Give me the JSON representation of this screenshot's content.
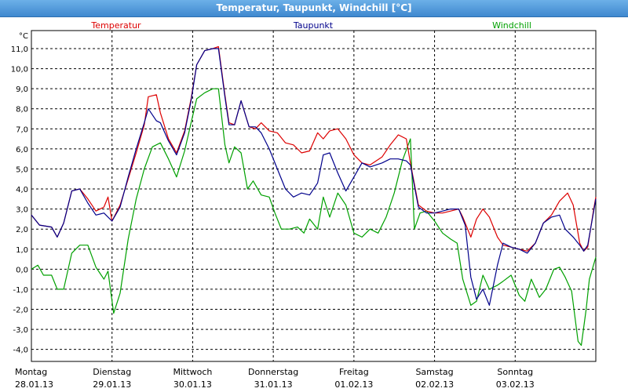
{
  "window": {
    "title": "Temperatur, Taupunkt, Windchill [°C]"
  },
  "chart_data": {
    "type": "line",
    "title": "Temperatur, Taupunkt, Windchill [°C]",
    "ylabel": "°C",
    "ylim": [
      -4.6,
      11.9
    ],
    "xlim": [
      0,
      7
    ],
    "grid": true,
    "legend_position": "top",
    "y_ticks": [
      "11,0",
      "10,0",
      "9,0",
      "8,0",
      "7,0",
      "6,0",
      "5,0",
      "4,0",
      "3,0",
      "2,0",
      "1,0",
      "0,0",
      "-1,0",
      "-2,0",
      "-3,0",
      "-4,0"
    ],
    "days": [
      {
        "day": "Montag",
        "date": "28.01.13"
      },
      {
        "day": "Dienstag",
        "date": "29.01.13"
      },
      {
        "day": "Mittwoch",
        "date": "30.01.13"
      },
      {
        "day": "Donnerstag",
        "date": "31.01.13"
      },
      {
        "day": "Freitag",
        "date": "01.02.13"
      },
      {
        "day": "Samstag",
        "date": "02.02.13"
      },
      {
        "day": "Sonntag",
        "date": "03.02.13"
      }
    ],
    "series": [
      {
        "name": "Temperatur",
        "color": "#dd0000",
        "points": [
          [
            0,
            2.7
          ],
          [
            0.1,
            2.2
          ],
          [
            0.25,
            2.1
          ],
          [
            0.32,
            1.6
          ],
          [
            0.4,
            2.3
          ],
          [
            0.5,
            3.9
          ],
          [
            0.6,
            4.0
          ],
          [
            0.7,
            3.5
          ],
          [
            0.8,
            2.9
          ],
          [
            0.9,
            3.1
          ],
          [
            0.95,
            3.6
          ],
          [
            1.0,
            2.4
          ],
          [
            1.1,
            3.2
          ],
          [
            1.2,
            4.5
          ],
          [
            1.3,
            5.8
          ],
          [
            1.4,
            7.2
          ],
          [
            1.45,
            8.6
          ],
          [
            1.55,
            8.7
          ],
          [
            1.6,
            7.8
          ],
          [
            1.7,
            6.5
          ],
          [
            1.8,
            5.8
          ],
          [
            1.9,
            6.9
          ],
          [
            1.98,
            8.5
          ],
          [
            2.05,
            10.2
          ],
          [
            2.15,
            10.9
          ],
          [
            2.25,
            11.0
          ],
          [
            2.32,
            11.1
          ],
          [
            2.4,
            8.7
          ],
          [
            2.45,
            7.3
          ],
          [
            2.52,
            7.2
          ],
          [
            2.6,
            8.4
          ],
          [
            2.7,
            7.1
          ],
          [
            2.78,
            7.0
          ],
          [
            2.85,
            7.3
          ],
          [
            2.95,
            6.9
          ],
          [
            3.05,
            6.8
          ],
          [
            3.15,
            6.3
          ],
          [
            3.25,
            6.2
          ],
          [
            3.35,
            5.8
          ],
          [
            3.45,
            5.9
          ],
          [
            3.55,
            6.8
          ],
          [
            3.62,
            6.5
          ],
          [
            3.7,
            6.9
          ],
          [
            3.8,
            7.0
          ],
          [
            3.9,
            6.5
          ],
          [
            4.0,
            5.7
          ],
          [
            4.1,
            5.3
          ],
          [
            4.2,
            5.2
          ],
          [
            4.35,
            5.6
          ],
          [
            4.45,
            6.2
          ],
          [
            4.55,
            6.7
          ],
          [
            4.65,
            6.5
          ],
          [
            4.7,
            5.3
          ],
          [
            4.8,
            3.2
          ],
          [
            4.9,
            2.9
          ],
          [
            5.0,
            2.8
          ],
          [
            5.1,
            2.8
          ],
          [
            5.2,
            2.9
          ],
          [
            5.3,
            3.0
          ],
          [
            5.35,
            2.6
          ],
          [
            5.45,
            1.6
          ],
          [
            5.52,
            2.5
          ],
          [
            5.6,
            3.0
          ],
          [
            5.68,
            2.6
          ],
          [
            5.78,
            1.6
          ],
          [
            5.85,
            1.2
          ],
          [
            5.95,
            1.1
          ],
          [
            6.05,
            1.0
          ],
          [
            6.15,
            0.9
          ],
          [
            6.25,
            1.3
          ],
          [
            6.35,
            2.3
          ],
          [
            6.45,
            2.7
          ],
          [
            6.55,
            3.4
          ],
          [
            6.65,
            3.8
          ],
          [
            6.72,
            3.2
          ],
          [
            6.8,
            1.3
          ],
          [
            6.85,
            0.9
          ],
          [
            6.9,
            1.1
          ],
          [
            6.97,
            2.9
          ],
          [
            7.0,
            3.6
          ]
        ]
      },
      {
        "name": "Taupunkt",
        "color": "#00008b",
        "points": [
          [
            0,
            2.7
          ],
          [
            0.1,
            2.2
          ],
          [
            0.25,
            2.1
          ],
          [
            0.32,
            1.6
          ],
          [
            0.4,
            2.3
          ],
          [
            0.5,
            3.9
          ],
          [
            0.6,
            4.0
          ],
          [
            0.7,
            3.3
          ],
          [
            0.8,
            2.7
          ],
          [
            0.9,
            2.8
          ],
          [
            1.0,
            2.4
          ],
          [
            1.1,
            3.1
          ],
          [
            1.2,
            4.6
          ],
          [
            1.3,
            6.0
          ],
          [
            1.4,
            7.3
          ],
          [
            1.45,
            8.0
          ],
          [
            1.55,
            7.4
          ],
          [
            1.6,
            7.3
          ],
          [
            1.7,
            6.4
          ],
          [
            1.8,
            5.7
          ],
          [
            1.9,
            6.8
          ],
          [
            1.98,
            8.4
          ],
          [
            2.05,
            10.2
          ],
          [
            2.15,
            10.9
          ],
          [
            2.25,
            11.0
          ],
          [
            2.32,
            11.0
          ],
          [
            2.4,
            8.6
          ],
          [
            2.45,
            7.2
          ],
          [
            2.52,
            7.2
          ],
          [
            2.6,
            8.4
          ],
          [
            2.7,
            7.1
          ],
          [
            2.78,
            7.1
          ],
          [
            2.85,
            6.8
          ],
          [
            2.95,
            6.0
          ],
          [
            3.05,
            5.0
          ],
          [
            3.15,
            4.0
          ],
          [
            3.25,
            3.6
          ],
          [
            3.35,
            3.8
          ],
          [
            3.45,
            3.7
          ],
          [
            3.55,
            4.3
          ],
          [
            3.62,
            5.7
          ],
          [
            3.7,
            5.8
          ],
          [
            3.8,
            4.8
          ],
          [
            3.9,
            3.9
          ],
          [
            4.0,
            4.6
          ],
          [
            4.1,
            5.3
          ],
          [
            4.2,
            5.1
          ],
          [
            4.35,
            5.3
          ],
          [
            4.45,
            5.5
          ],
          [
            4.55,
            5.5
          ],
          [
            4.65,
            5.4
          ],
          [
            4.7,
            5.2
          ],
          [
            4.8,
            3.1
          ],
          [
            4.9,
            2.8
          ],
          [
            5.0,
            2.8
          ],
          [
            5.1,
            2.9
          ],
          [
            5.2,
            3.0
          ],
          [
            5.3,
            3.0
          ],
          [
            5.38,
            2.2
          ],
          [
            5.45,
            -0.4
          ],
          [
            5.52,
            -1.5
          ],
          [
            5.6,
            -1.0
          ],
          [
            5.68,
            -1.8
          ],
          [
            5.78,
            0.2
          ],
          [
            5.85,
            1.3
          ],
          [
            5.95,
            1.1
          ],
          [
            6.05,
            1.0
          ],
          [
            6.15,
            0.8
          ],
          [
            6.25,
            1.3
          ],
          [
            6.35,
            2.3
          ],
          [
            6.45,
            2.6
          ],
          [
            6.55,
            2.7
          ],
          [
            6.62,
            2.0
          ],
          [
            6.72,
            1.6
          ],
          [
            6.8,
            1.2
          ],
          [
            6.85,
            0.9
          ],
          [
            6.9,
            1.2
          ],
          [
            6.97,
            2.8
          ],
          [
            7.0,
            3.5
          ]
        ]
      },
      {
        "name": "Windchill",
        "color": "#00a000",
        "points": [
          [
            0,
            0.0
          ],
          [
            0.08,
            0.2
          ],
          [
            0.15,
            -0.3
          ],
          [
            0.25,
            -0.3
          ],
          [
            0.32,
            -1.0
          ],
          [
            0.4,
            -1.0
          ],
          [
            0.5,
            0.8
          ],
          [
            0.6,
            1.2
          ],
          [
            0.7,
            1.2
          ],
          [
            0.8,
            0.1
          ],
          [
            0.9,
            -0.5
          ],
          [
            0.95,
            -0.1
          ],
          [
            1.02,
            -2.2
          ],
          [
            1.1,
            -1.2
          ],
          [
            1.2,
            1.5
          ],
          [
            1.3,
            3.5
          ],
          [
            1.4,
            5.0
          ],
          [
            1.5,
            6.1
          ],
          [
            1.6,
            6.3
          ],
          [
            1.7,
            5.5
          ],
          [
            1.8,
            4.6
          ],
          [
            1.9,
            5.9
          ],
          [
            1.98,
            7.3
          ],
          [
            2.05,
            8.5
          ],
          [
            2.15,
            8.8
          ],
          [
            2.25,
            9.0
          ],
          [
            2.32,
            9.0
          ],
          [
            2.4,
            6.2
          ],
          [
            2.45,
            5.3
          ],
          [
            2.52,
            6.1
          ],
          [
            2.6,
            5.8
          ],
          [
            2.68,
            4.0
          ],
          [
            2.75,
            4.4
          ],
          [
            2.85,
            3.7
          ],
          [
            2.95,
            3.6
          ],
          [
            3.02,
            2.8
          ],
          [
            3.1,
            2.0
          ],
          [
            3.2,
            2.0
          ],
          [
            3.3,
            2.1
          ],
          [
            3.38,
            1.8
          ],
          [
            3.45,
            2.5
          ],
          [
            3.55,
            2.0
          ],
          [
            3.62,
            3.6
          ],
          [
            3.7,
            2.6
          ],
          [
            3.8,
            3.8
          ],
          [
            3.9,
            3.2
          ],
          [
            4.0,
            1.8
          ],
          [
            4.1,
            1.6
          ],
          [
            4.2,
            2.0
          ],
          [
            4.3,
            1.8
          ],
          [
            4.4,
            2.6
          ],
          [
            4.5,
            3.8
          ],
          [
            4.6,
            5.4
          ],
          [
            4.7,
            6.5
          ],
          [
            4.75,
            2.0
          ],
          [
            4.82,
            2.8
          ],
          [
            4.9,
            2.9
          ],
          [
            5.0,
            2.4
          ],
          [
            5.1,
            1.8
          ],
          [
            5.2,
            1.5
          ],
          [
            5.28,
            1.3
          ],
          [
            5.35,
            -0.5
          ],
          [
            5.45,
            -1.8
          ],
          [
            5.52,
            -1.6
          ],
          [
            5.6,
            -0.3
          ],
          [
            5.68,
            -1.0
          ],
          [
            5.78,
            -0.8
          ],
          [
            5.85,
            -0.6
          ],
          [
            5.95,
            -0.3
          ],
          [
            6.05,
            -1.3
          ],
          [
            6.12,
            -1.6
          ],
          [
            6.2,
            -0.5
          ],
          [
            6.3,
            -1.4
          ],
          [
            6.38,
            -1.0
          ],
          [
            6.48,
            0.0
          ],
          [
            6.55,
            0.1
          ],
          [
            6.62,
            -0.4
          ],
          [
            6.7,
            -1.1
          ],
          [
            6.78,
            -3.6
          ],
          [
            6.82,
            -3.8
          ],
          [
            6.88,
            -2.0
          ],
          [
            6.92,
            -0.5
          ],
          [
            7.0,
            0.6
          ]
        ]
      }
    ]
  }
}
